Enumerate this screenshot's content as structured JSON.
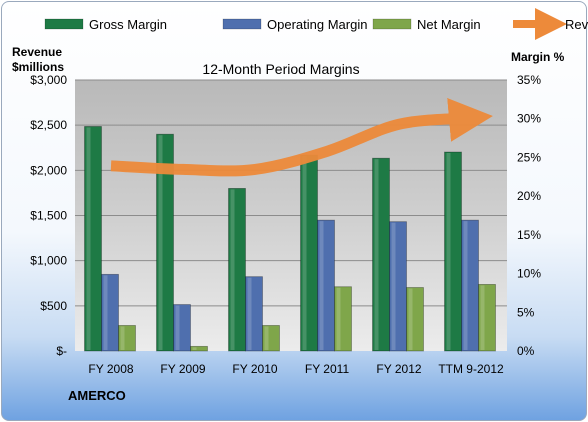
{
  "company": "AMERCO",
  "chart_data": {
    "type": "bar",
    "title": "12-Month Period Margins",
    "categories": [
      "FY 2008",
      "FY 2009",
      "FY 2010",
      "FY 2011",
      "FY 2012",
      "TTM 9-2012"
    ],
    "series": [
      {
        "name": "Gross Margin",
        "axis": "right",
        "unit": "%",
        "color": "#1e7a45",
        "values": [
          29.0,
          28.0,
          21.0,
          25.3,
          24.9,
          25.7
        ]
      },
      {
        "name": "Operating Margin",
        "axis": "right",
        "unit": "%",
        "color": "#4f6fae",
        "values": [
          9.9,
          6.0,
          9.6,
          16.9,
          16.7,
          16.9
        ]
      },
      {
        "name": "Net Margin",
        "axis": "right",
        "unit": "%",
        "color": "#7fa64a",
        "values": [
          3.3,
          0.6,
          3.3,
          8.3,
          8.2,
          8.6
        ]
      },
      {
        "name": "Revenues",
        "axis": "left",
        "type": "line",
        "unit": "$millions",
        "color": "#ed8a3a",
        "values": [
          2050,
          2010,
          2010,
          2210,
          2510,
          2580
        ]
      }
    ],
    "y_left": {
      "label_line1": "Revenue",
      "label_line2": "$millions",
      "range": [
        0,
        3000
      ],
      "ticks": [
        0,
        500,
        1000,
        1500,
        2000,
        2500,
        3000
      ],
      "tick_labels": [
        "$-",
        "$500",
        "$1,000",
        "$1,500",
        "$2,000",
        "$2,500",
        "$3,000"
      ]
    },
    "y_right": {
      "label": "Margin %",
      "range": [
        0,
        35
      ],
      "ticks": [
        0,
        5,
        10,
        15,
        20,
        25,
        30,
        35
      ],
      "tick_labels": [
        "0%",
        "5%",
        "10%",
        "15%",
        "20%",
        "25%",
        "30%",
        "35%"
      ]
    },
    "legend_position": "top",
    "grid": true
  }
}
